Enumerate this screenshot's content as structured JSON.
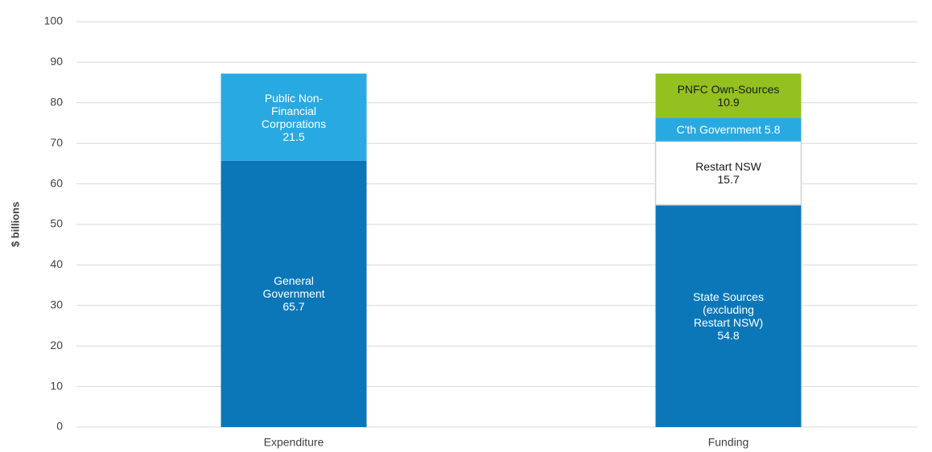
{
  "chart_data": {
    "type": "stacked_bar",
    "y_label": "$ billions",
    "categories": [
      "Expenditure",
      "Funding"
    ],
    "series": [
      {
        "name": "General Government",
        "color": "#0b77b9",
        "values": [
          65.7,
          null
        ]
      },
      {
        "name": "Public Non-Financial Corporations",
        "color": "#29a9e1",
        "values": [
          21.5,
          null
        ]
      },
      {
        "name": "State Sources (excluding Restart NSW)",
        "color": "#0b77b9",
        "values": [
          null,
          54.8
        ]
      },
      {
        "name": "Restart NSW",
        "color": "#ffffff",
        "values": [
          null,
          15.7
        ]
      },
      {
        "name": "C'th Government",
        "color": "#29a9e1",
        "values": [
          null,
          5.8
        ]
      },
      {
        "name": "PNFC Own-Sources",
        "color": "#94c11f",
        "values": [
          null,
          10.9
        ]
      }
    ],
    "ylim": [
      0,
      100
    ],
    "yticks": [
      0,
      10,
      20,
      30,
      40,
      50,
      60,
      70,
      80,
      90,
      100
    ],
    "grid": true
  }
}
